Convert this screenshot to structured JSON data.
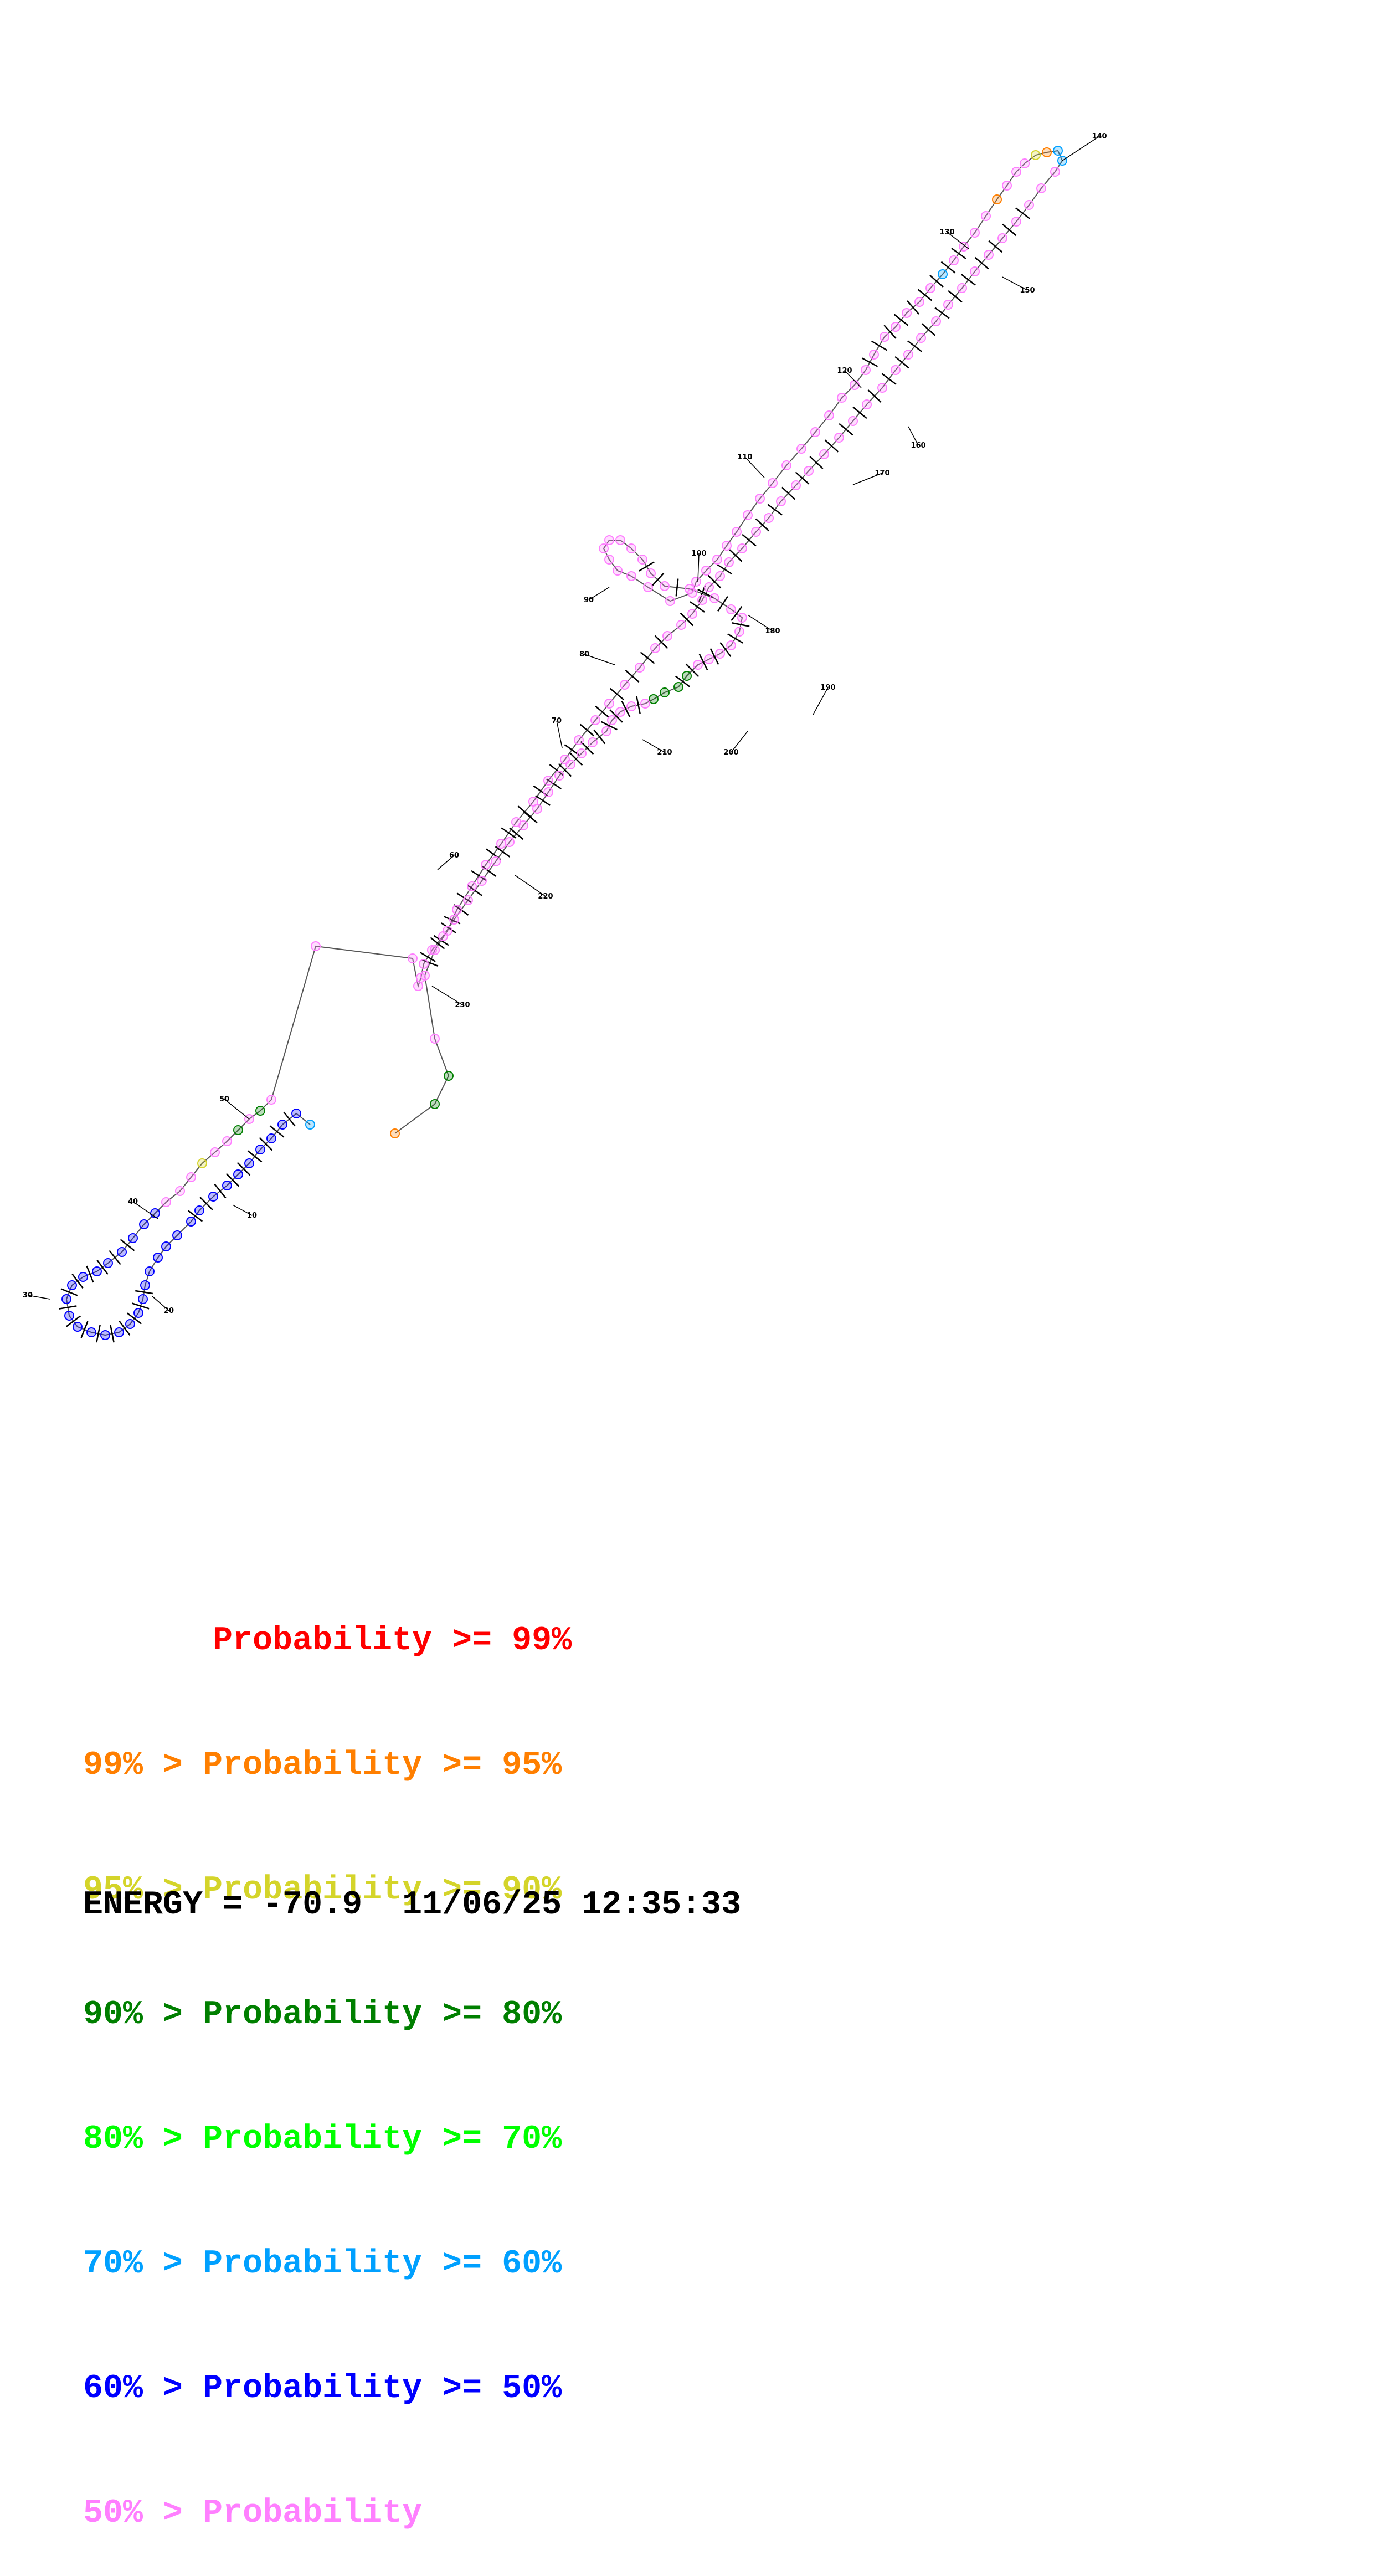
{
  "colors": {
    "p99": "#ff0000",
    "p95": "#ff7f00",
    "p90": "#d4d42a",
    "p80": "#007f00",
    "p70": "#00ff00",
    "p60": "#00a0ff",
    "p50": "#0000ff",
    "below50": "#ff7fff",
    "backbone": "#555555",
    "pair": "#000000"
  },
  "structure": {
    "position_labels": [
      "10",
      "20",
      "30",
      "40",
      "50",
      "60",
      "70",
      "80",
      "90",
      "100",
      "110",
      "120",
      "130",
      "140",
      "150",
      "160",
      "170",
      "180",
      "190",
      "200",
      "210",
      "220",
      "230"
    ]
  },
  "legend": {
    "lines": [
      {
        "prefix": "",
        "text": "Probability >= 99%",
        "color_key": "p99"
      },
      {
        "prefix": "99% > ",
        "text": "Probability >= 95%",
        "color_key": "p95"
      },
      {
        "prefix": "95% > ",
        "text": "Probability >= 90%",
        "color_key": "p90"
      },
      {
        "prefix": "90% > ",
        "text": "Probability >= 80%",
        "color_key": "p80"
      },
      {
        "prefix": "80% > ",
        "text": "Probability >= 70%",
        "color_key": "p70"
      },
      {
        "prefix": "70% > ",
        "text": "Probability >= 60%",
        "color_key": "p60"
      },
      {
        "prefix": "60% > ",
        "text": "Probability >= 50%",
        "color_key": "p50"
      },
      {
        "prefix": "50% > ",
        "text": "Probability",
        "color_key": "below50"
      }
    ],
    "energy": "ENERGY = -70.9  11/06/25 12:35:33"
  }
}
